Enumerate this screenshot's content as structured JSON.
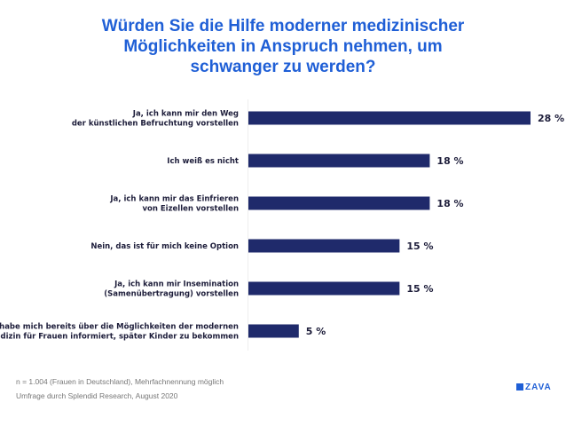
{
  "chart_data": {
    "type": "bar",
    "orientation": "horizontal",
    "title": "Würden Sie die Hilfe moderner medizinischer Möglichkeiten in Anspruch nehmen, um schwanger zu werden?",
    "categories": [
      [
        "Ja, ich kann mir den Weg",
        "der künstlichen Befruchtung vorstellen"
      ],
      [
        "Ich weiß es nicht"
      ],
      [
        "Ja, ich kann mir das Einfrieren",
        "von Eizellen vorstellen"
      ],
      [
        "Nein, das ist für mich keine Option"
      ],
      [
        "Ja, ich kann mir Insemination",
        "(Samenübertragung) vorstellen"
      ],
      [
        "Ich habe mich bereits über die Möglichkeiten der modernen",
        "Medizin für Frauen informiert, später Kinder zu bekommen"
      ]
    ],
    "values": [
      28,
      18,
      18,
      15,
      15,
      5
    ],
    "value_labels": [
      "28 %",
      "18 %",
      "18 %",
      "15 %",
      "15 %",
      "5 %"
    ],
    "bar_color": "#1f2a6b",
    "title_color": "#1f5fd6",
    "grid": false
  },
  "footer": {
    "line1": "n = 1.004 (Frauen in Deutschland), Mehrfachnennung möglich",
    "line2": "Umfrage durch Splendid Research, August 2020"
  },
  "logo": "ZAVA"
}
